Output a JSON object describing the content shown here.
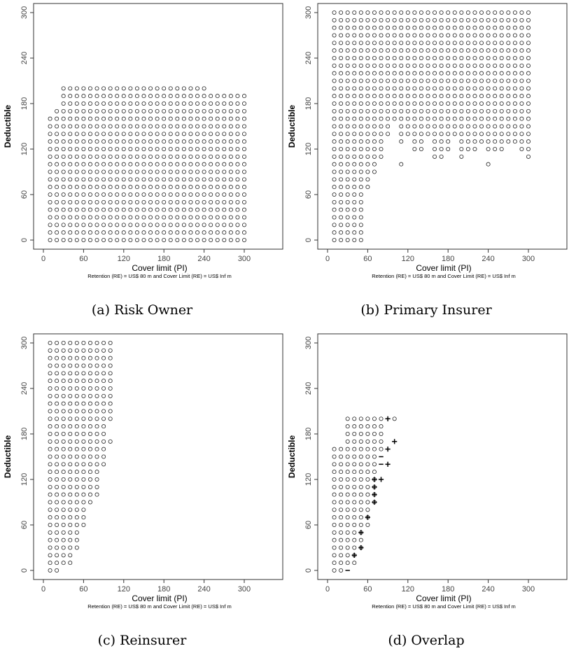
{
  "chart_data": [
    {
      "type": "scatter",
      "caption": "(a) Risk Owner",
      "xlabel": "Cover limit (PI)",
      "ylabel": "Deductible",
      "subtitle": "Retention (RE) = US$ 80 m and Cover Limit (RE) = US$ Inf m",
      "xlim": [
        0,
        300
      ],
      "ylim": [
        0,
        300
      ],
      "xticks": [
        "0",
        "60",
        "120",
        "180",
        "240",
        "300"
      ],
      "yticks": [
        "0",
        "60",
        "120",
        "180",
        "240",
        "300"
      ],
      "point_rule": "all (x,y) on 10-grid with x in [10,300], y in [0,300] and y <= limit(x)",
      "column_max_deductible": [
        {
          "x": 10,
          "y": 160
        },
        {
          "x": 20,
          "y": 170
        },
        {
          "x": 30,
          "y": 200
        },
        {
          "x": 40,
          "y": 200
        },
        {
          "x": 50,
          "y": 200
        },
        {
          "x": 60,
          "y": 200
        },
        {
          "x": 70,
          "y": 200
        },
        {
          "x": 80,
          "y": 200
        },
        {
          "x": 90,
          "y": 200
        },
        {
          "x": 100,
          "y": 200
        },
        {
          "x": 110,
          "y": 200
        },
        {
          "x": 120,
          "y": 200
        },
        {
          "x": 130,
          "y": 200
        },
        {
          "x": 140,
          "y": 200
        },
        {
          "x": 150,
          "y": 200
        },
        {
          "x": 160,
          "y": 200
        },
        {
          "x": 170,
          "y": 200
        },
        {
          "x": 180,
          "y": 200
        },
        {
          "x": 190,
          "y": 200
        },
        {
          "x": 200,
          "y": 200
        },
        {
          "x": 210,
          "y": 200
        },
        {
          "x": 220,
          "y": 200
        },
        {
          "x": 230,
          "y": 200
        },
        {
          "x": 240,
          "y": 200
        },
        {
          "x": 250,
          "y": 190
        },
        {
          "x": 260,
          "y": 190
        },
        {
          "x": 270,
          "y": 190
        },
        {
          "x": 280,
          "y": 190
        },
        {
          "x": 290,
          "y": 190
        },
        {
          "x": 300,
          "y": 190
        }
      ],
      "exceptions_absent": [],
      "extra_points": [],
      "plus_points": [],
      "minus_points": []
    },
    {
      "type": "scatter",
      "caption": "(b) Primary Insurer",
      "xlabel": "Cover limit (PI)",
      "ylabel": "Deductible",
      "subtitle": "Retention (RE) = US$ 80 m and Cover Limit (RE) = US$ Inf m",
      "xlim": [
        0,
        300
      ],
      "ylim": [
        0,
        300
      ],
      "xticks": [
        "0",
        "60",
        "120",
        "180",
        "240",
        "300"
      ],
      "yticks": [
        "0",
        "60",
        "120",
        "180",
        "240",
        "300"
      ],
      "point_rule": "all (x,y) on 10-grid with x in [10,300], y in [0,300] and y >= threshold(x)",
      "column_min_deductible": [
        {
          "x": 10,
          "y": 0
        },
        {
          "x": 20,
          "y": 0
        },
        {
          "x": 30,
          "y": 0
        },
        {
          "x": 40,
          "y": 0
        },
        {
          "x": 50,
          "y": 0
        },
        {
          "x": 60,
          "y": 70
        },
        {
          "x": 70,
          "y": 90
        },
        {
          "x": 80,
          "y": 110
        },
        {
          "x": 90,
          "y": 140
        },
        {
          "x": 100,
          "y": 160
        },
        {
          "x": 110,
          "y": 130
        },
        {
          "x": 120,
          "y": 140
        },
        {
          "x": 130,
          "y": 120
        },
        {
          "x": 140,
          "y": 120
        },
        {
          "x": 150,
          "y": 140
        },
        {
          "x": 160,
          "y": 110
        },
        {
          "x": 170,
          "y": 110
        },
        {
          "x": 180,
          "y": 120
        },
        {
          "x": 190,
          "y": 140
        },
        {
          "x": 200,
          "y": 110
        },
        {
          "x": 210,
          "y": 120
        },
        {
          "x": 220,
          "y": 120
        },
        {
          "x": 230,
          "y": 130
        },
        {
          "x": 240,
          "y": 120
        },
        {
          "x": 250,
          "y": 120
        },
        {
          "x": 260,
          "y": 120
        },
        {
          "x": 270,
          "y": 130
        },
        {
          "x": 280,
          "y": 130
        },
        {
          "x": 290,
          "y": 120
        },
        {
          "x": 300,
          "y": 110
        }
      ],
      "exceptions_absent": [],
      "extra_points": [
        {
          "x": 110,
          "y": 100
        },
        {
          "x": 240,
          "y": 100
        }
      ],
      "plus_points": [],
      "minus_points": []
    },
    {
      "type": "scatter",
      "caption": "(c) Reinsurer",
      "xlabel": "Cover limit (PI)",
      "ylabel": "Deductible",
      "subtitle": "Retention (RE) = US$ 80 m and Cover Limit (RE) = US$ Inf m",
      "xlim": [
        0,
        300
      ],
      "ylim": [
        0,
        300
      ],
      "xticks": [
        "0",
        "60",
        "120",
        "180",
        "240",
        "300"
      ],
      "yticks": [
        "0",
        "60",
        "120",
        "180",
        "240",
        "300"
      ],
      "point_rule": "all (x,y) on 10-grid with x in [10,100], y in [0,300] and y >= min(x) and y <= max(x)",
      "column_ranges": [
        {
          "x": 10,
          "min": 0,
          "max": 300
        },
        {
          "x": 20,
          "min": 0,
          "max": 300
        },
        {
          "x": 30,
          "min": 10,
          "max": 300
        },
        {
          "x": 40,
          "min": 10,
          "max": 300
        },
        {
          "x": 50,
          "min": 30,
          "max": 300
        },
        {
          "x": 60,
          "min": 60,
          "max": 300
        },
        {
          "x": 70,
          "min": 90,
          "max": 300
        },
        {
          "x": 80,
          "min": 100,
          "max": 300
        },
        {
          "x": 90,
          "min": 150,
          "max": 300
        },
        {
          "x": 100,
          "min": 200,
          "max": 300
        }
      ],
      "exceptions_absent": [],
      "extra_points": [
        {
          "x": 90,
          "y": 140
        },
        {
          "x": 100,
          "y": 170
        }
      ],
      "plus_points": [],
      "minus_points": []
    },
    {
      "type": "scatter",
      "caption": "(d) Overlap",
      "xlabel": "Cover limit (PI)",
      "ylabel": "Deductible",
      "subtitle": "Retention (RE) = US$ 80 m and Cover Limit (RE) = US$ Inf m",
      "xlim": [
        0,
        300
      ],
      "ylim": [
        0,
        300
      ],
      "xticks": [
        "0",
        "60",
        "120",
        "180",
        "240",
        "300"
      ],
      "yticks": [
        "0",
        "60",
        "120",
        "180",
        "240",
        "300"
      ],
      "point_rule": "circles on 10-grid",
      "column_ranges": [
        {
          "x": 10,
          "min": 0,
          "max": 160
        },
        {
          "x": 20,
          "min": 0,
          "max": 160
        },
        {
          "x": 30,
          "min": 10,
          "max": 200
        },
        {
          "x": 40,
          "min": 10,
          "max": 200
        },
        {
          "x": 50,
          "min": 30,
          "max": 200
        },
        {
          "x": 60,
          "min": 60,
          "max": 200
        },
        {
          "x": 70,
          "min": 90,
          "max": 200
        },
        {
          "x": 80,
          "min": 160,
          "max": 200
        }
      ],
      "exceptions_absent": [],
      "extra_points": [
        {
          "x": 100,
          "y": 200
        }
      ],
      "plus_points": [
        {
          "x": 40,
          "y": 20
        },
        {
          "x": 50,
          "y": 30
        },
        {
          "x": 50,
          "y": 50
        },
        {
          "x": 60,
          "y": 70
        },
        {
          "x": 70,
          "y": 90
        },
        {
          "x": 70,
          "y": 100
        },
        {
          "x": 70,
          "y": 110
        },
        {
          "x": 70,
          "y": 120
        },
        {
          "x": 80,
          "y": 120
        },
        {
          "x": 90,
          "y": 140
        },
        {
          "x": 90,
          "y": 160
        },
        {
          "x": 100,
          "y": 170
        },
        {
          "x": 90,
          "y": 200
        }
      ],
      "minus_points": [
        {
          "x": 30,
          "y": 0
        },
        {
          "x": 80,
          "y": 140
        },
        {
          "x": 80,
          "y": 150
        }
      ]
    }
  ]
}
